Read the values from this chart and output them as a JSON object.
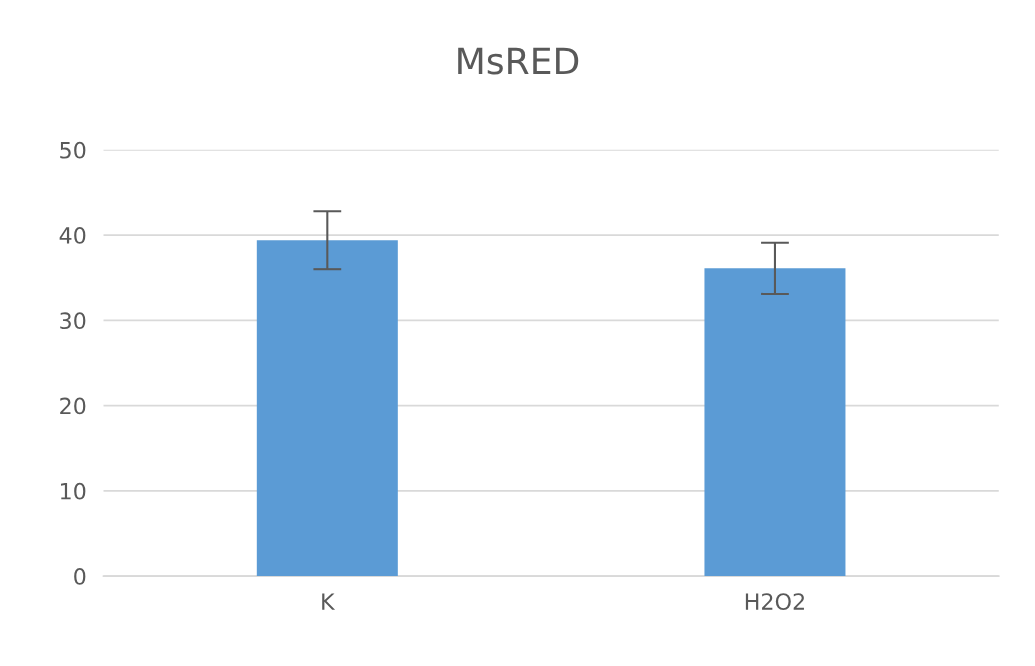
{
  "chart_data": {
    "type": "bar",
    "title": "MsRED",
    "categories": [
      "K",
      "H2O2"
    ],
    "values": [
      39.4,
      36.1
    ],
    "errors": [
      3.4,
      3.0
    ],
    "color": "#5b9bd5",
    "ylim": [
      0,
      50
    ],
    "yticks": [
      0,
      10,
      20,
      30,
      40,
      50
    ],
    "grid": "y",
    "legend": false
  }
}
